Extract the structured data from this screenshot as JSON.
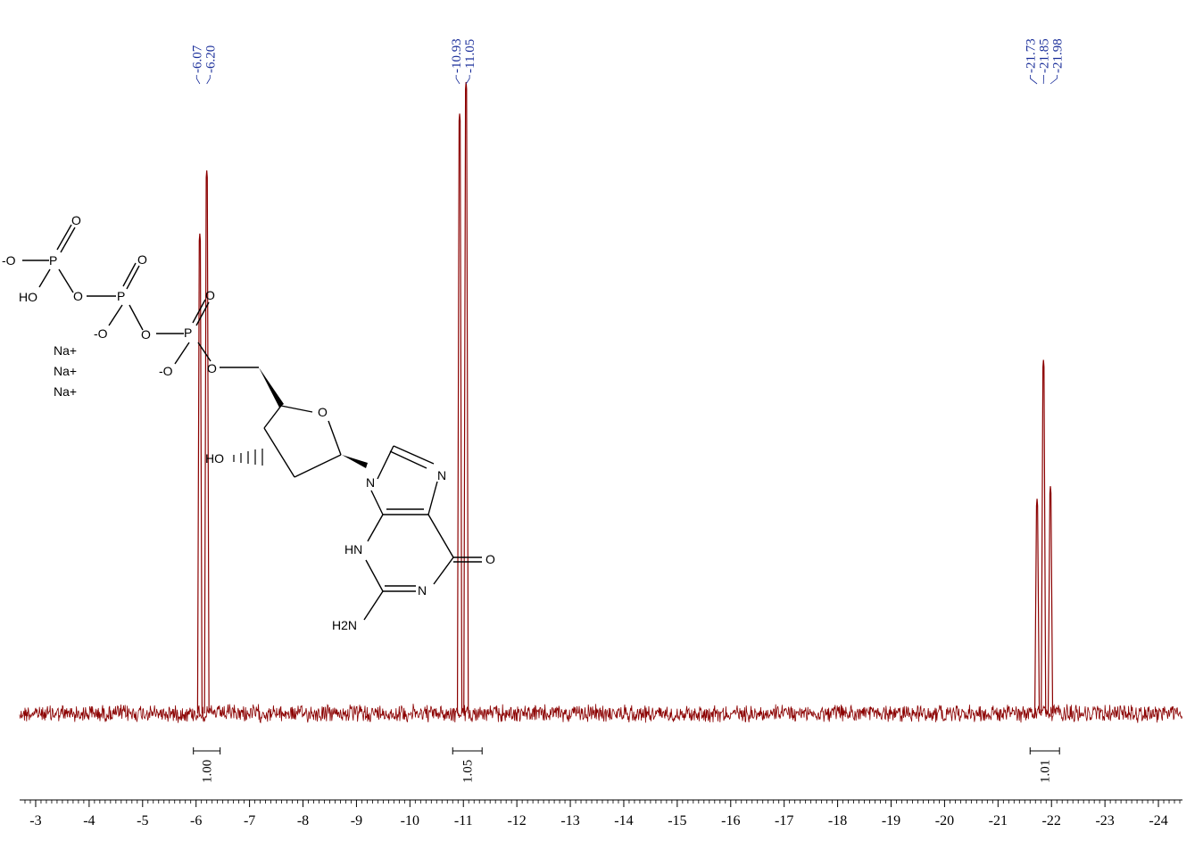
{
  "chart_data": {
    "type": "line",
    "title": "",
    "xlabel": "",
    "ylabel": "",
    "x_reversed": true,
    "xlim": [
      -2.7,
      -24.45
    ],
    "xticks": [
      "-3",
      "-4",
      "-5",
      "-6",
      "-7",
      "-8",
      "-9",
      "-10",
      "-11",
      "-12",
      "-13",
      "-14",
      "-15",
      "-16",
      "-17",
      "-18",
      "-19",
      "-20",
      "-21",
      "-22",
      "-23",
      "-24"
    ],
    "peaks": [
      {
        "ppm": -6.07,
        "rel_height": 0.76
      },
      {
        "ppm": -6.2,
        "rel_height": 0.86
      },
      {
        "ppm": -10.93,
        "rel_height": 0.95
      },
      {
        "ppm": -11.05,
        "rel_height": 1.0
      },
      {
        "ppm": -21.73,
        "rel_height": 0.34
      },
      {
        "ppm": -21.85,
        "rel_height": 0.56
      },
      {
        "ppm": -21.98,
        "rel_height": 0.36
      }
    ],
    "peak_labels": [
      {
        "group": 1,
        "labels": [
          "-6.07",
          "-6.20"
        ]
      },
      {
        "group": 2,
        "labels": [
          "-10.93",
          "-11.05"
        ]
      },
      {
        "group": 3,
        "labels": [
          "-21.73",
          "-21.85",
          "-21.98"
        ]
      }
    ],
    "integrals": [
      {
        "from": -5.95,
        "to": -6.45,
        "value": "1.00"
      },
      {
        "from": -10.8,
        "to": -11.35,
        "value": "1.05"
      },
      {
        "from": -21.6,
        "to": -22.15,
        "value": "1.01"
      }
    ],
    "colors": {
      "spectrum": "#8b0000",
      "peak_label": "#1a2e9a",
      "axis": "#000000"
    }
  },
  "molecule": {
    "ion1": "Na+",
    "ion2": "Na+",
    "ion3": "Na+",
    "atoms": {
      "o_minus_1": "-O",
      "p1": "P",
      "o_top1": "O",
      "ho": "HO",
      "o_bridge1": "O",
      "p2": "P",
      "o_top2": "O",
      "o_minus_2": "-O",
      "o_bridge2": "O",
      "p3": "P",
      "o_top3": "O",
      "o_minus_3": "-O",
      "o_5prime": "O",
      "o_ring": "O",
      "ho_3prime": "HO",
      "n9": "N",
      "n7": "N",
      "hn": "HN",
      "o_carbonyl": "O",
      "n3": "N",
      "h2n": "H2N"
    }
  }
}
